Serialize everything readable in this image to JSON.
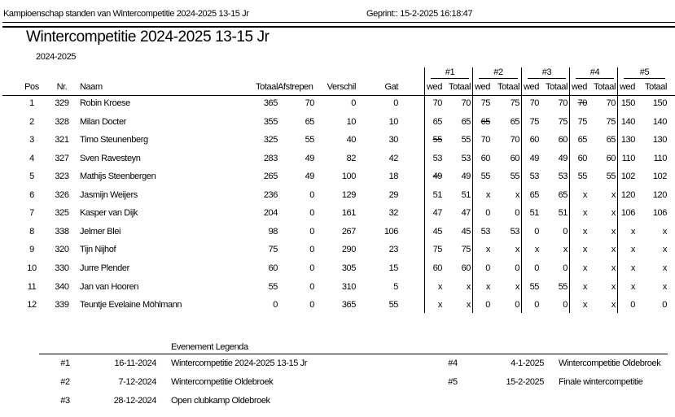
{
  "header": {
    "report": "Kampioenschap standen van Wintercompetitie 2024-2025 13-15 Jr",
    "printed": "Geprint:: 15-2-2025 16:18:47"
  },
  "title": "Wintercompetitie 2024-2025 13-15 Jr",
  "season": "2024-2025",
  "table": {
    "event_headers": [
      "#1",
      "#2",
      "#3",
      "#4",
      "#5"
    ],
    "columns": [
      "Pos",
      "Nr.",
      "Naam",
      "Totaal",
      "Afstrepen",
      "Verschil",
      "Gat"
    ],
    "event_columns": [
      "wed",
      "Totaal"
    ],
    "rows": [
      {
        "cells": [
          1,
          329,
          "Robin Kroese",
          365,
          70,
          0,
          0
        ],
        "events": [
          [
            70,
            70
          ],
          [
            75,
            75
          ],
          [
            70,
            70
          ],
          [
            70,
            70
          ],
          [
            150,
            150
          ]
        ],
        "struck": [
          3
        ]
      },
      {
        "cells": [
          2,
          328,
          "Milan Docter",
          355,
          65,
          10,
          10
        ],
        "events": [
          [
            65,
            65
          ],
          [
            65,
            65
          ],
          [
            75,
            75
          ],
          [
            75,
            75
          ],
          [
            140,
            140
          ]
        ],
        "struck": [
          1
        ]
      },
      {
        "cells": [
          3,
          321,
          "Timo Steunenberg",
          325,
          55,
          40,
          30
        ],
        "events": [
          [
            55,
            55
          ],
          [
            70,
            70
          ],
          [
            60,
            60
          ],
          [
            65,
            65
          ],
          [
            130,
            130
          ]
        ],
        "struck": [
          0
        ]
      },
      {
        "cells": [
          4,
          327,
          "Sven Ravesteyn",
          283,
          49,
          82,
          42
        ],
        "events": [
          [
            53,
            53
          ],
          [
            60,
            60
          ],
          [
            49,
            49
          ],
          [
            60,
            60
          ],
          [
            110,
            110
          ]
        ],
        "struck": []
      },
      {
        "cells": [
          5,
          323,
          "Mathijs Steenbergen",
          265,
          49,
          100,
          18
        ],
        "events": [
          [
            49,
            49
          ],
          [
            55,
            55
          ],
          [
            53,
            53
          ],
          [
            55,
            55
          ],
          [
            102,
            102
          ]
        ],
        "struck": [
          0
        ]
      },
      {
        "cells": [
          6,
          326,
          "Jasmijn Weijers",
          236,
          0,
          129,
          29
        ],
        "events": [
          [
            51,
            51
          ],
          [
            "x",
            "x"
          ],
          [
            65,
            65
          ],
          [
            "x",
            "x"
          ],
          [
            120,
            120
          ]
        ],
        "struck": []
      },
      {
        "cells": [
          7,
          325,
          "Kasper van Dijk",
          204,
          0,
          161,
          32
        ],
        "events": [
          [
            47,
            47
          ],
          [
            0,
            0
          ],
          [
            51,
            51
          ],
          [
            "x",
            "x"
          ],
          [
            106,
            106
          ]
        ],
        "struck": []
      },
      {
        "cells": [
          8,
          338,
          "Jelmer Blei",
          98,
          0,
          267,
          106
        ],
        "events": [
          [
            45,
            45
          ],
          [
            53,
            53
          ],
          [
            0,
            0
          ],
          [
            "x",
            "x"
          ],
          [
            "x",
            "x"
          ]
        ],
        "struck": []
      },
      {
        "cells": [
          9,
          320,
          "Tijn Nijhof",
          75,
          0,
          290,
          23
        ],
        "events": [
          [
            75,
            75
          ],
          [
            "x",
            "x"
          ],
          [
            "x",
            "x"
          ],
          [
            "x",
            "x"
          ],
          [
            "x",
            "x"
          ]
        ],
        "struck": []
      },
      {
        "cells": [
          10,
          330,
          "Jurre Plender",
          60,
          0,
          305,
          15
        ],
        "events": [
          [
            60,
            60
          ],
          [
            0,
            0
          ],
          [
            0,
            0
          ],
          [
            "x",
            "x"
          ],
          [
            "x",
            "x"
          ]
        ],
        "struck": []
      },
      {
        "cells": [
          11,
          340,
          "Jan van Hooren",
          55,
          0,
          310,
          5
        ],
        "events": [
          [
            "x",
            "x"
          ],
          [
            "x",
            "x"
          ],
          [
            55,
            55
          ],
          [
            "x",
            "x"
          ],
          [
            "x",
            "x"
          ]
        ],
        "struck": []
      },
      {
        "cells": [
          12,
          339,
          "Teuntje Evelaine Möhlmann",
          0,
          0,
          365,
          55
        ],
        "events": [
          [
            "x",
            "x"
          ],
          [
            0,
            0
          ],
          [
            0,
            0
          ],
          [
            "x",
            "x"
          ],
          [
            0,
            0
          ]
        ],
        "struck": []
      }
    ]
  },
  "legend": {
    "title": "Evenement Legenda",
    "entries": [
      {
        "id": "#1",
        "date": "16-11-2024",
        "name": "Wintercompetitie 2024-2025 13-15 Jr"
      },
      {
        "id": "#2",
        "date": "7-12-2024",
        "name": "Wintercompetitie Oldebroek"
      },
      {
        "id": "#3",
        "date": "28-12-2024",
        "name": "Open clubkamp Oldebroek"
      },
      {
        "id": "#4",
        "date": "4-1-2025",
        "name": "Wintercompetitie Oldebroek"
      },
      {
        "id": "#5",
        "date": "15-2-2025",
        "name": "Finale wintercompetitie"
      }
    ]
  }
}
